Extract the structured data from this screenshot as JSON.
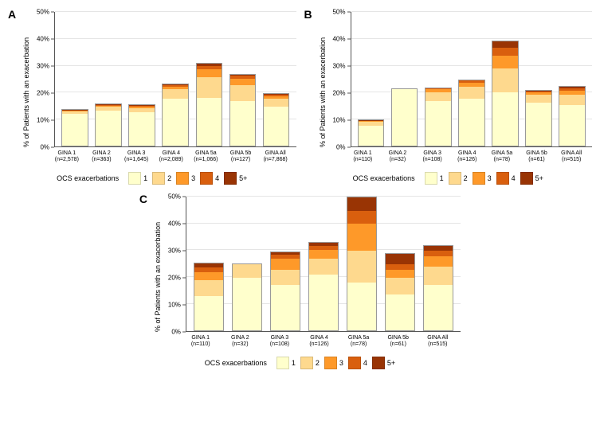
{
  "colors": {
    "c1": "#ffffcc",
    "c2": "#fed98e",
    "c3": "#fe9929",
    "c4": "#d95f0e",
    "c5": "#993404",
    "grid": "#e5e5e5",
    "axis": "#555555",
    "bg": "#ffffff"
  },
  "legend": {
    "title": "OCS exacerbations",
    "items": [
      {
        "label": "1",
        "colorKey": "c1"
      },
      {
        "label": "2",
        "colorKey": "c2"
      },
      {
        "label": "3",
        "colorKey": "c3"
      },
      {
        "label": "4",
        "colorKey": "c4"
      },
      {
        "label": "5+",
        "colorKey": "c5"
      }
    ]
  },
  "panels": [
    {
      "id": "A",
      "ylabel": "% of Patients with an exacerbation",
      "ymax": 50,
      "ytick_step": 10,
      "categories": [
        {
          "line1": "GINA 1",
          "line2": "(n=2,578)"
        },
        {
          "line1": "GINA 2",
          "line2": "(n=363)"
        },
        {
          "line1": "GINA 3",
          "line2": "(n=1,645)"
        },
        {
          "line1": "GINA 4",
          "line2": "(n=2,089)"
        },
        {
          "line1": "GINA 5a",
          "line2": "(n=1,066)"
        },
        {
          "line1": "GINA 5b",
          "line2": "(n=127)"
        },
        {
          "line1": "GINA All",
          "line2": "(n=7,868)"
        }
      ],
      "stacks": [
        [
          12.5,
          0.8,
          0.2,
          0.2,
          0.1
        ],
        [
          13.5,
          1.5,
          0.5,
          0.3,
          0.2
        ],
        [
          13.0,
          1.5,
          0.5,
          0.4,
          0.2
        ],
        [
          18.0,
          3.5,
          1.0,
          0.5,
          0.3
        ],
        [
          18.0,
          8.0,
          3.0,
          1.2,
          0.8
        ],
        [
          17.0,
          6.0,
          2.5,
          1.0,
          0.5
        ],
        [
          15.0,
          3.0,
          1.0,
          0.5,
          0.3
        ]
      ]
    },
    {
      "id": "B",
      "ylabel": "% of Patients with an exacerbation",
      "ymax": 50,
      "ytick_step": 10,
      "categories": [
        {
          "line1": "GINA 1",
          "line2": "(n=110)"
        },
        {
          "line1": "GINA 2",
          "line2": "(n=32)"
        },
        {
          "line1": "GINA 3",
          "line2": "(n=108)"
        },
        {
          "line1": "GINA 4",
          "line2": "(n=126)"
        },
        {
          "line1": "GINA 5a",
          "line2": "(n=78)"
        },
        {
          "line1": "GINA 5b",
          "line2": "(n=61)"
        },
        {
          "line1": "GINA All",
          "line2": "(n=515)"
        }
      ],
      "stacks": [
        [
          8.0,
          1.5,
          0.3,
          0.1,
          0.1
        ],
        [
          21.5,
          0.0,
          0.0,
          0.0,
          0.0
        ],
        [
          17.0,
          3.5,
          1.0,
          0.3,
          0.2
        ],
        [
          18.0,
          4.5,
          1.5,
          0.8,
          0.2
        ],
        [
          20.0,
          9.0,
          5.0,
          3.0,
          2.5
        ],
        [
          16.5,
          3.0,
          1.0,
          0.3,
          0.2
        ],
        [
          15.5,
          4.0,
          1.5,
          1.0,
          0.5
        ]
      ]
    },
    {
      "id": "C",
      "ylabel": "% of Patients with an exacerbation",
      "ymax": 50,
      "ytick_step": 10,
      "categories": [
        {
          "line1": "GINA 1",
          "line2": "(n=110)"
        },
        {
          "line1": "GINA 2",
          "line2": "(n=32)"
        },
        {
          "line1": "GINA 3",
          "line2": "(n=108)"
        },
        {
          "line1": "GINA 4",
          "line2": "(n=126)"
        },
        {
          "line1": "GINA 5a",
          "line2": "(n=78)"
        },
        {
          "line1": "GINA 5b",
          "line2": "(n=61)"
        },
        {
          "line1": "GINA All",
          "line2": "(n=515)"
        }
      ],
      "stacks": [
        [
          13.0,
          6.0,
          3.0,
          2.0,
          1.5
        ],
        [
          20.0,
          5.0,
          0.0,
          0.0,
          0.0
        ],
        [
          17.0,
          6.0,
          4.0,
          1.5,
          1.0
        ],
        [
          21.0,
          6.0,
          3.5,
          1.5,
          1.0
        ],
        [
          18.0,
          12.0,
          10.0,
          5.0,
          5.0
        ],
        [
          13.5,
          6.5,
          3.0,
          2.0,
          4.0
        ],
        [
          17.0,
          7.0,
          4.0,
          2.0,
          2.0
        ]
      ]
    }
  ]
}
